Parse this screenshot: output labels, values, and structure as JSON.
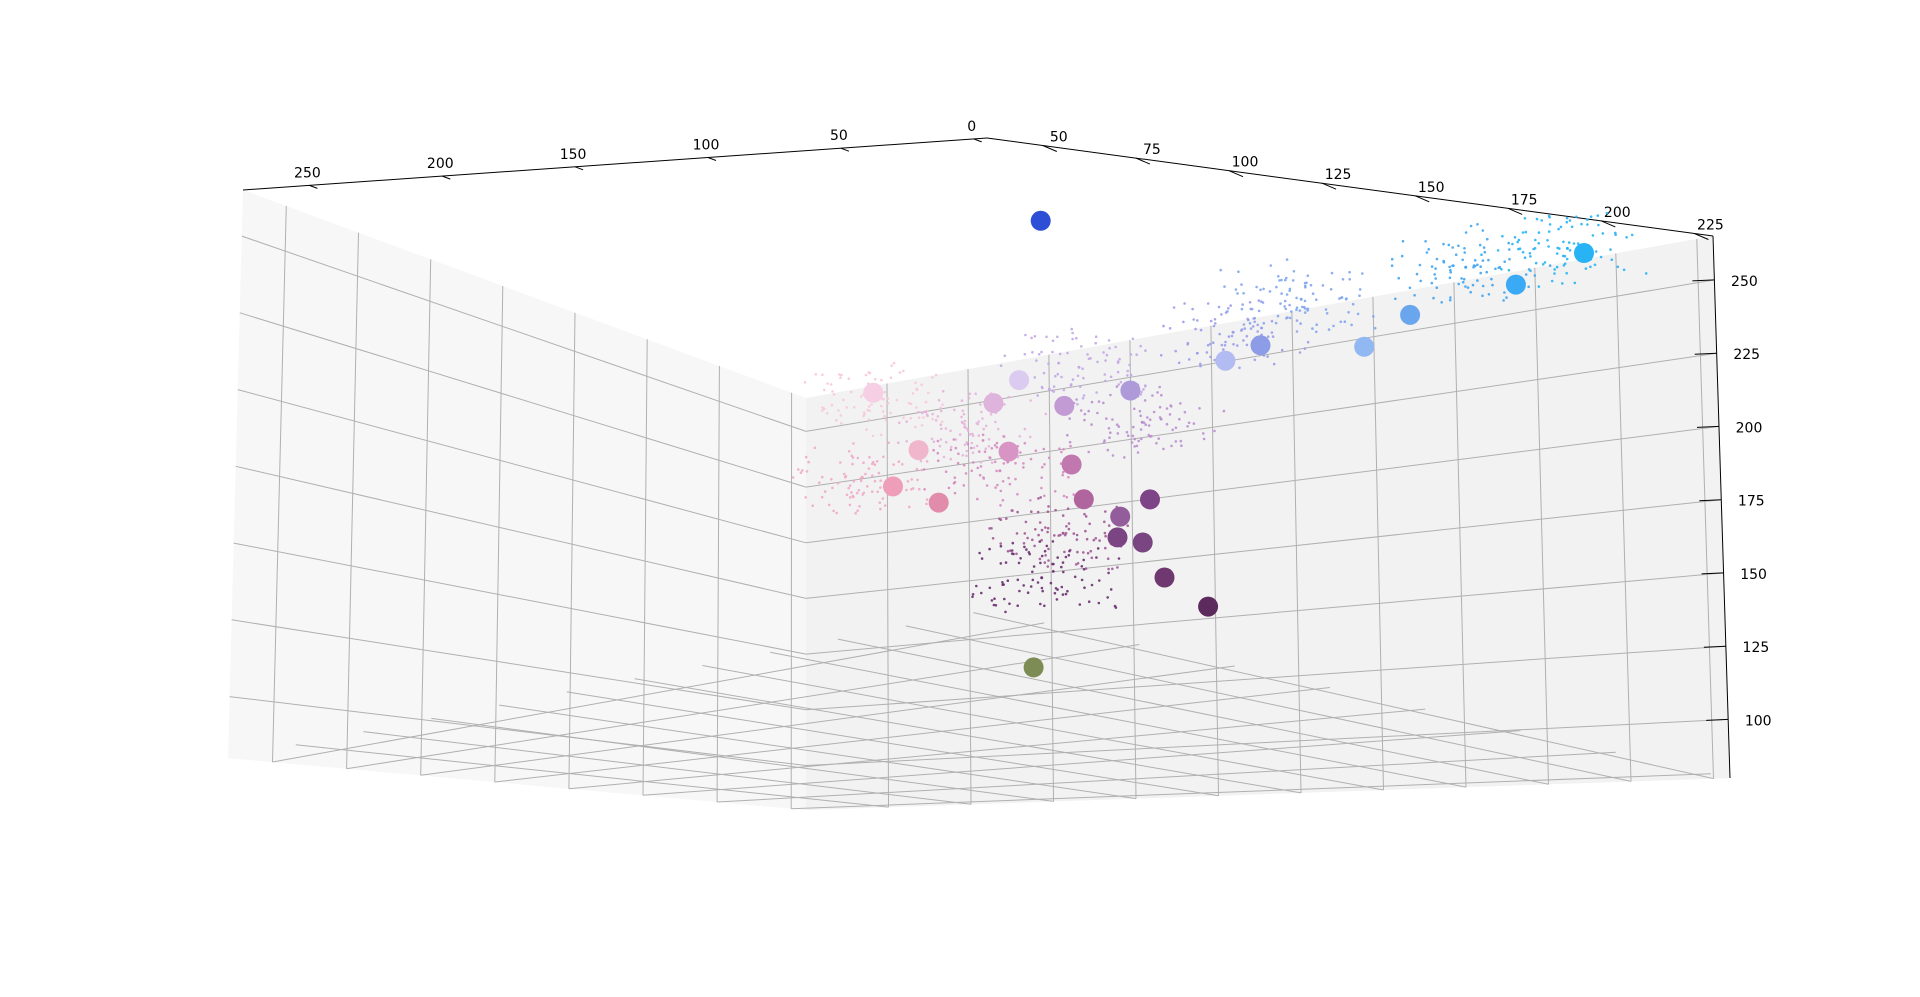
{
  "chart_data": {
    "type": "scatter",
    "projection": "3d",
    "title": "",
    "xlabel": "",
    "ylabel": "",
    "zlabel": "",
    "grid": true,
    "legend": "none",
    "pane_color": "#f2f2f2",
    "grid_color": "#b0b0b0",
    "axes": {
      "x": {
        "ticks": [
          "250",
          "200",
          "150",
          "100",
          "50",
          "0"
        ]
      },
      "y": {
        "ticks": [
          "225",
          "200",
          "175",
          "150",
          "125",
          "100",
          "75",
          "50"
        ]
      },
      "z": {
        "ticks": [
          "250",
          "225",
          "200",
          "175",
          "150",
          "125",
          "100"
        ]
      }
    },
    "series": [
      {
        "style": "small",
        "points": [
          {
            "x": 22,
            "y": 214,
            "z": 263,
            "color": "#28b4f4"
          },
          {
            "x": 45,
            "y": 206,
            "z": 259,
            "color": "#3fa4f2"
          },
          {
            "x": 85,
            "y": 195,
            "z": 252,
            "color": "#7fa6ee"
          },
          {
            "x": 110,
            "y": 198,
            "z": 245,
            "color": "#9a9ee8"
          },
          {
            "x": 160,
            "y": 199,
            "z": 241,
            "color": "#c3a8e6"
          },
          {
            "x": 230,
            "y": 205,
            "z": 244,
            "color": "#f6c8dc"
          },
          {
            "x": 120,
            "y": 180,
            "z": 208,
            "color": "#b98fd0"
          },
          {
            "x": 175,
            "y": 178,
            "z": 214,
            "color": "#e6b4da"
          },
          {
            "x": 150,
            "y": 165,
            "z": 190,
            "color": "#d48cc0"
          },
          {
            "x": 200,
            "y": 170,
            "z": 196,
            "color": "#f0aac8"
          },
          {
            "x": 90,
            "y": 130,
            "z": 150,
            "color": "#a05a94"
          },
          {
            "x": 55,
            "y": 95,
            "z": 120,
            "color": "#6a3070"
          }
        ]
      },
      {
        "style": "large",
        "points": [
          {
            "x": 10,
            "y": 208,
            "z": 258,
            "color": "#28b4f4"
          },
          {
            "x": 35,
            "y": 211,
            "z": 252,
            "color": "#3aaaf6"
          },
          {
            "x": 55,
            "y": 199,
            "z": 242,
            "color": "#6aa6ee"
          },
          {
            "x": 85,
            "y": 213,
            "z": 239,
            "color": "#91b8f2"
          },
          {
            "x": 120,
            "y": 205,
            "z": 238,
            "color": "#b2bcf2"
          },
          {
            "x": 85,
            "y": 183,
            "z": 232,
            "color": "#8c9ce6"
          },
          {
            "x": 180,
            "y": 200,
            "z": 240,
            "color": "#dccbf0"
          },
          {
            "x": 230,
            "y": 204,
            "z": 246,
            "color": "#f6cfe4"
          },
          {
            "x": 115,
            "y": 172,
            "z": 217,
            "color": "#ae9ad8"
          },
          {
            "x": 145,
            "y": 180,
            "z": 218,
            "color": "#c29ad4"
          },
          {
            "x": 175,
            "y": 187,
            "z": 226,
            "color": "#deb4dc"
          },
          {
            "x": 200,
            "y": 188,
            "z": 212,
            "color": "#f0b6cc"
          },
          {
            "x": 145,
            "y": 163,
            "z": 196,
            "color": "#d894c4"
          },
          {
            "x": 190,
            "y": 170,
            "z": 191,
            "color": "#ee9eb8"
          },
          {
            "x": 155,
            "y": 151,
            "z": 175,
            "color": "#e28cac"
          },
          {
            "x": 110,
            "y": 150,
            "z": 183,
            "color": "#c078ae"
          },
          {
            "x": 90,
            "y": 136,
            "z": 164,
            "color": "#b0659e"
          },
          {
            "x": 60,
            "y": 121,
            "z": 150,
            "color": "#935c9a"
          },
          {
            "x": 35,
            "y": 109,
            "z": 150,
            "color": "#7e4488"
          },
          {
            "x": 45,
            "y": 108,
            "z": 137,
            "color": "#7b4483"
          },
          {
            "x": 25,
            "y": 99,
            "z": 130,
            "color": "#7a4682"
          },
          {
            "x": 15,
            "y": 97,
            "z": 115,
            "color": "#703870"
          },
          {
            "x": 0,
            "y": 97,
            "z": 102,
            "color": "#5c2a5c"
          },
          {
            "x": 80,
            "y": 113,
            "z": 95,
            "color": "#7d8c55"
          },
          {
            "x": 0,
            "y": 53,
            "z": 237,
            "color": "#2d4fd6"
          }
        ]
      }
    ]
  }
}
